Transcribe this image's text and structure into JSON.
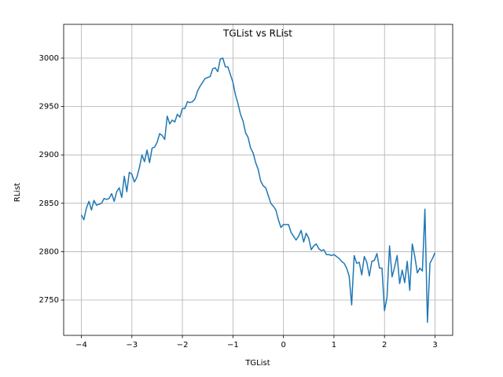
{
  "chart_data": {
    "type": "line",
    "title": "TGList vs RList",
    "x_label": "TGList",
    "y_label": "RList",
    "x": [
      -4.0,
      -3.95,
      -3.9,
      -3.85,
      -3.8,
      -3.75,
      -3.7,
      -3.65,
      -3.6,
      -3.55,
      -3.5,
      -3.45,
      -3.4,
      -3.35,
      -3.3,
      -3.25,
      -3.2,
      -3.15,
      -3.1,
      -3.05,
      -3.0,
      -2.95,
      -2.9,
      -2.85,
      -2.8,
      -2.75,
      -2.7,
      -2.65,
      -2.6,
      -2.55,
      -2.5,
      -2.45,
      -2.4,
      -2.35,
      -2.3,
      -2.25,
      -2.2,
      -2.15,
      -2.1,
      -2.05,
      -2.0,
      -1.95,
      -1.9,
      -1.85,
      -1.8,
      -1.75,
      -1.7,
      -1.65,
      -1.6,
      -1.55,
      -1.5,
      -1.45,
      -1.4,
      -1.35,
      -1.3,
      -1.25,
      -1.2,
      -1.15,
      -1.1,
      -1.05,
      -1.0,
      -0.95,
      -0.9,
      -0.85,
      -0.8,
      -0.75,
      -0.7,
      -0.65,
      -0.6,
      -0.55,
      -0.5,
      -0.45,
      -0.4,
      -0.35,
      -0.3,
      -0.25,
      -0.2,
      -0.15,
      -0.1,
      -0.05,
      0.0,
      0.05,
      0.1,
      0.15,
      0.2,
      0.25,
      0.3,
      0.35,
      0.4,
      0.45,
      0.5,
      0.55,
      0.6,
      0.65,
      0.7,
      0.75,
      0.8,
      0.85,
      0.9,
      0.95,
      1.0,
      1.05,
      1.1,
      1.15,
      1.2,
      1.25,
      1.3,
      1.35,
      1.4,
      1.45,
      1.5,
      1.55,
      1.6,
      1.65,
      1.7,
      1.75,
      1.8,
      1.85,
      1.9,
      1.95,
      2.0,
      2.05,
      2.1,
      2.15,
      2.2,
      2.25,
      2.3,
      2.35,
      2.4,
      2.45,
      2.5,
      2.55,
      2.6,
      2.65,
      2.7,
      2.75,
      2.8,
      2.85,
      2.9,
      2.95,
      3.0
    ],
    "series": [
      {
        "color": "#1f77b4",
        "values": [
          2838,
          2833,
          2845,
          2852,
          2843,
          2853,
          2848,
          2849,
          2850,
          2855,
          2854,
          2855,
          2860,
          2852,
          2862,
          2866,
          2856,
          2878,
          2862,
          2882,
          2880,
          2872,
          2877,
          2887,
          2900,
          2893,
          2905,
          2892,
          2907,
          2908,
          2913,
          2922,
          2920,
          2916,
          2940,
          2932,
          2936,
          2934,
          2942,
          2939,
          2948,
          2948,
          2955,
          2954,
          2955,
          2958,
          2966,
          2971,
          2975,
          2979,
          2980,
          2981,
          2989,
          2990,
          2986,
          2999,
          3000,
          2991,
          2991,
          2983,
          2975,
          2962,
          2953,
          2942,
          2935,
          2923,
          2918,
          2907,
          2902,
          2892,
          2885,
          2873,
          2868,
          2866,
          2858,
          2850,
          2847,
          2843,
          2833,
          2825,
          2828,
          2828,
          2828,
          2820,
          2816,
          2812,
          2816,
          2822,
          2810,
          2819,
          2814,
          2802,
          2806,
          2808,
          2803,
          2801,
          2802,
          2797,
          2797,
          2796,
          2797,
          2795,
          2793,
          2790,
          2788,
          2783,
          2775,
          2745,
          2796,
          2788,
          2789,
          2776,
          2795,
          2789,
          2775,
          2790,
          2791,
          2798,
          2783,
          2783,
          2739,
          2753,
          2806,
          2774,
          2784,
          2796,
          2767,
          2781,
          2768,
          2790,
          2760,
          2808,
          2795,
          2778,
          2783,
          2780,
          2844,
          2727,
          2788,
          2793,
          2799
        ]
      }
    ],
    "xlim": [
      -4.35,
      3.35
    ],
    "ylim": [
      2713.5,
      3034.9
    ],
    "xticks": [
      {
        "value": -4,
        "label": "−4"
      },
      {
        "value": -3,
        "label": "−3"
      },
      {
        "value": -2,
        "label": "−2"
      },
      {
        "value": -1,
        "label": "−1"
      },
      0,
      1,
      2,
      3
    ],
    "yticks": [
      2750,
      2800,
      2850,
      2900,
      2950,
      3000
    ],
    "grid": true
  }
}
